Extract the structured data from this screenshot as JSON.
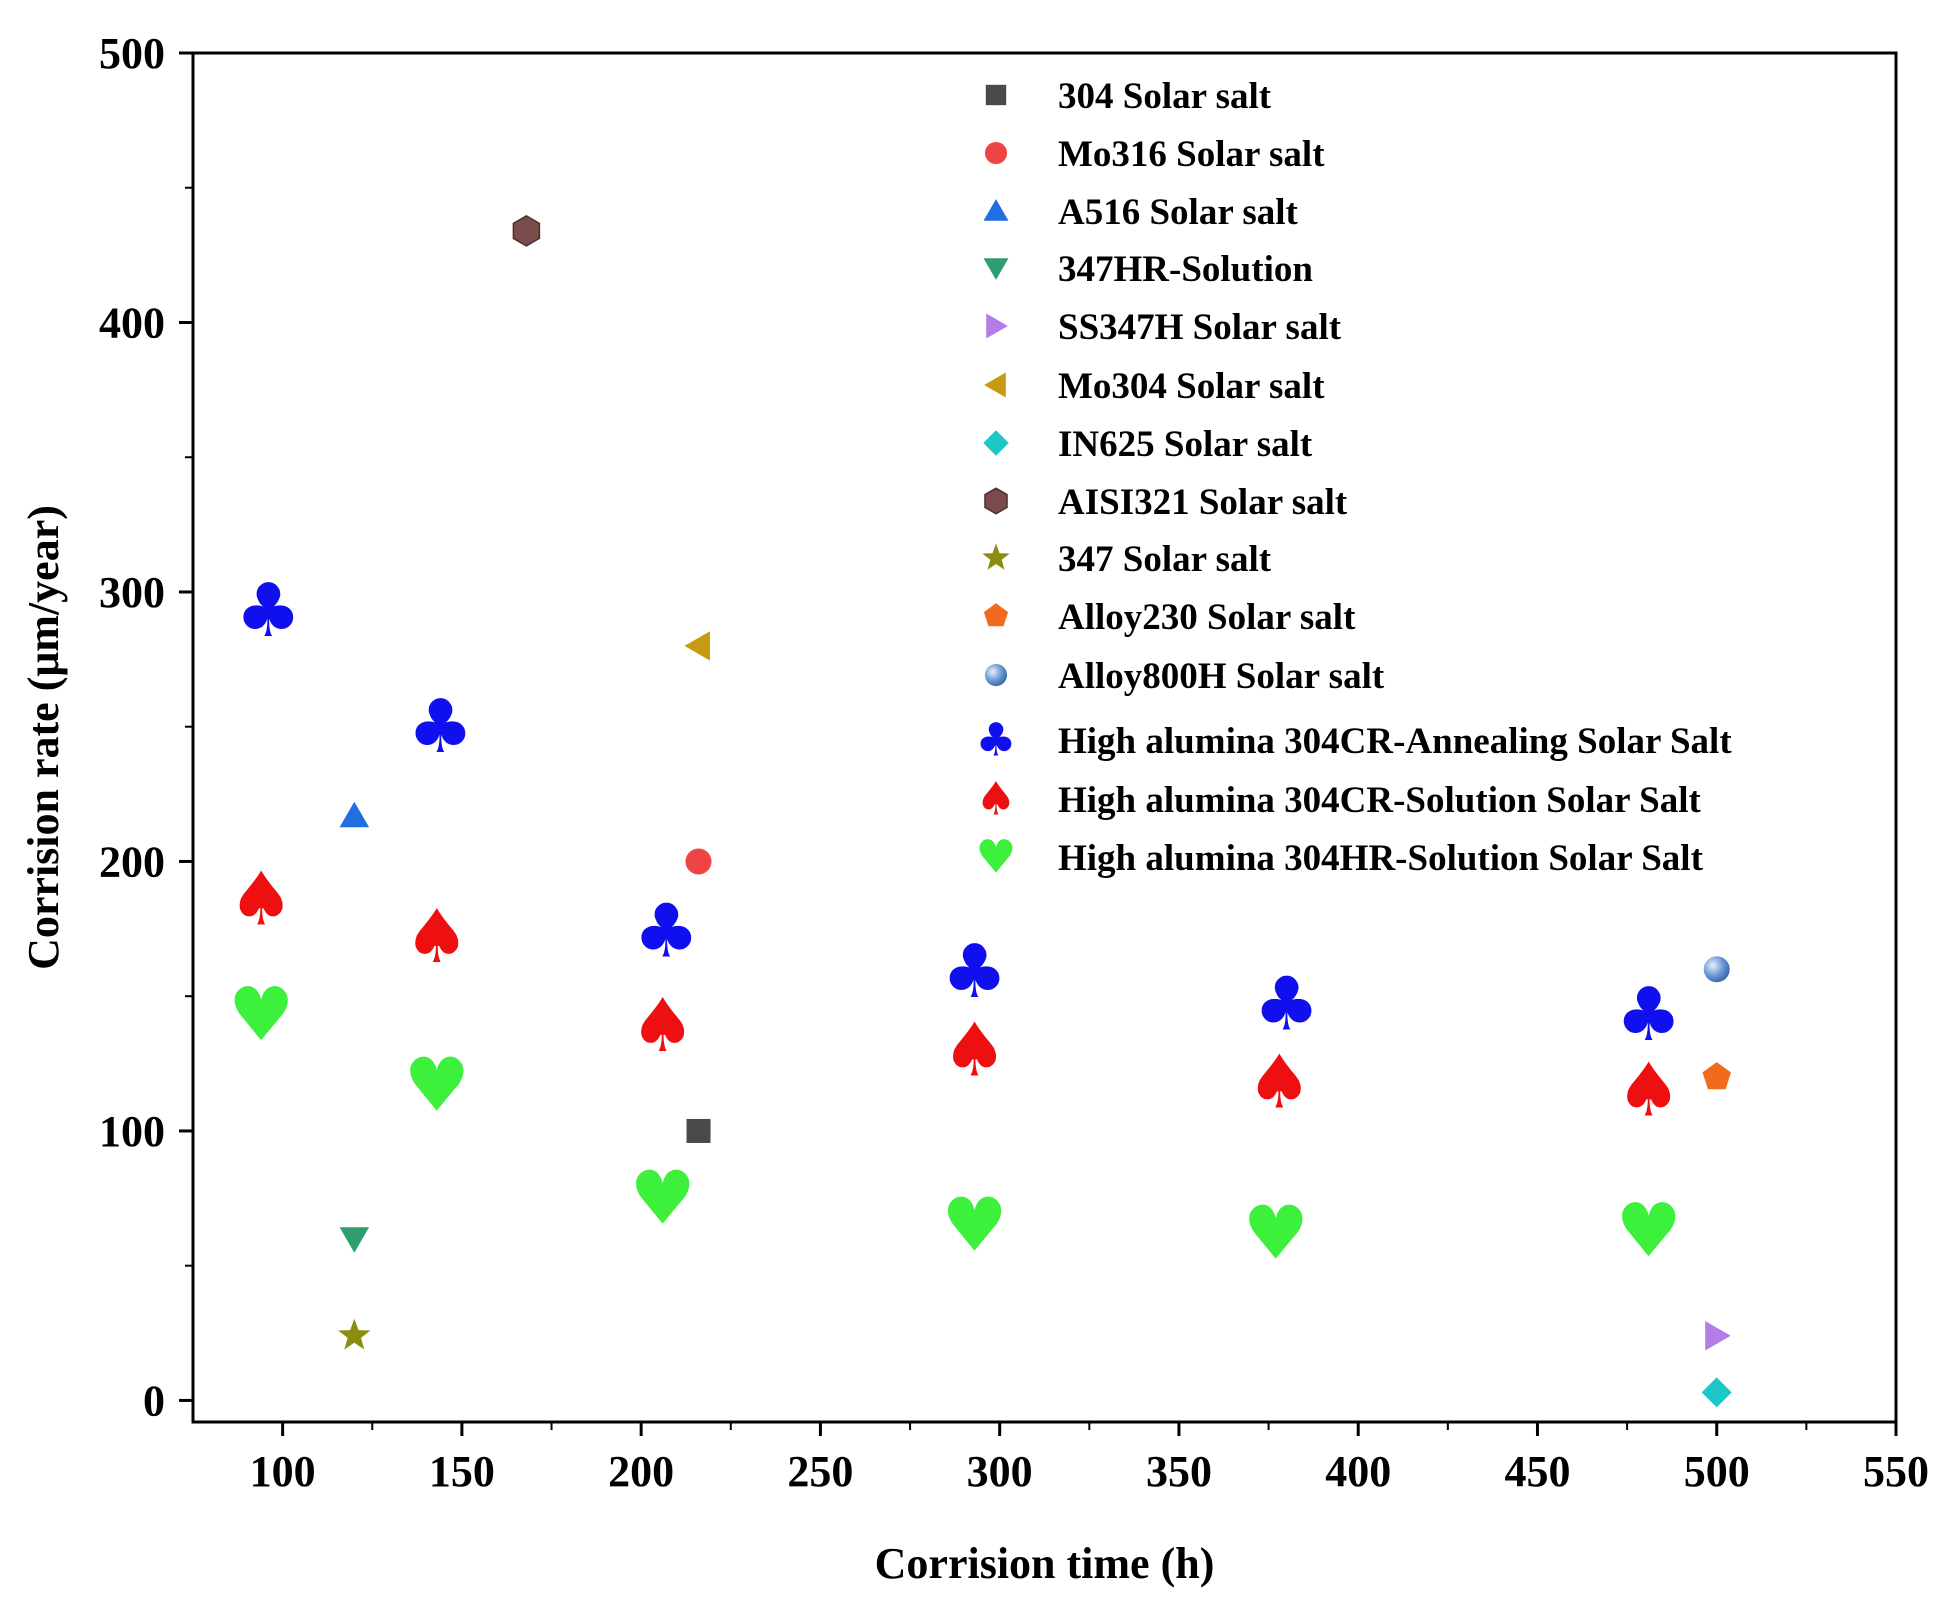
{
  "chart_data": {
    "type": "scatter",
    "title": "",
    "xlabel": "Corrision time (h)",
    "ylabel": "Corrision rate (μm/year)",
    "xlim": [
      75,
      550
    ],
    "ylim": [
      -8,
      500
    ],
    "xticks": [
      100,
      150,
      200,
      250,
      300,
      350,
      400,
      450,
      500,
      550
    ],
    "yticks": [
      0,
      100,
      200,
      300,
      400,
      500
    ],
    "legend_position": "top-right",
    "series": [
      {
        "name": "304 Solar salt",
        "marker": "square",
        "color": "#4a4a4a",
        "points": [
          [
            216,
            100
          ]
        ]
      },
      {
        "name": "Mo316 Solar salt",
        "marker": "circle",
        "color": "#ef4444",
        "points": [
          [
            216,
            200
          ]
        ]
      },
      {
        "name": "A516 Solar salt",
        "marker": "triangle-up",
        "color": "#1f6fe0",
        "points": [
          [
            120,
            217
          ]
        ]
      },
      {
        "name": "347HR-Solution",
        "marker": "triangle-down",
        "color": "#2e9e6e",
        "points": [
          [
            120,
            60
          ]
        ]
      },
      {
        "name": "SS347H Solar salt",
        "marker": "triangle-right",
        "color": "#b57be6",
        "points": [
          [
            500,
            24
          ]
        ]
      },
      {
        "name": "Mo304 Solar salt",
        "marker": "triangle-left",
        "color": "#c89a10",
        "points": [
          [
            216,
            280
          ]
        ]
      },
      {
        "name": "IN625 Solar salt",
        "marker": "diamond",
        "color": "#1dc7c7",
        "points": [
          [
            500,
            3
          ]
        ]
      },
      {
        "name": "AISI321 Solar salt",
        "marker": "hexagon",
        "color": "#7a4c4c",
        "points": [
          [
            168,
            434
          ]
        ]
      },
      {
        "name": "347 Solar salt",
        "marker": "star",
        "color": "#8c8c10",
        "points": [
          [
            120,
            24
          ]
        ]
      },
      {
        "name": "Alloy230 Solar salt",
        "marker": "pentagon",
        "color": "#f26b1d",
        "points": [
          [
            500,
            120
          ]
        ]
      },
      {
        "name": "Alloy800H Solar salt",
        "marker": "sphere",
        "color": "#6f9bd6",
        "points": [
          [
            500,
            160
          ]
        ]
      },
      {
        "name": "High alumina 304CR-Annealing Solar Salt",
        "marker": "club",
        "color": "#1010ee",
        "points": [
          [
            96,
            293
          ],
          [
            144,
            250
          ],
          [
            207,
            174
          ],
          [
            293,
            159
          ],
          [
            380,
            147
          ],
          [
            481,
            143
          ]
        ]
      },
      {
        "name": "High alumina 304CR-Solution Solar Salt",
        "marker": "spade",
        "color": "#ee1010",
        "points": [
          [
            94,
            186
          ],
          [
            143,
            172
          ],
          [
            206,
            139
          ],
          [
            293,
            130
          ],
          [
            378,
            118
          ],
          [
            481,
            115
          ]
        ]
      },
      {
        "name": "High alumina 304HR-Solution Solar Salt",
        "marker": "heart",
        "color": "#3cf03c",
        "points": [
          [
            94,
            143
          ],
          [
            143,
            117
          ],
          [
            206,
            75
          ],
          [
            293,
            65
          ],
          [
            377,
            62
          ],
          [
            481,
            63
          ]
        ]
      }
    ]
  }
}
